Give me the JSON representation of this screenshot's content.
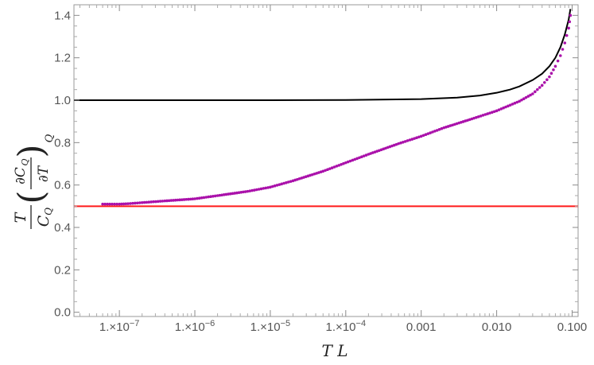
{
  "chart_data": {
    "type": "scatter",
    "title": "",
    "xlabel": "T L",
    "ylabel": {
      "prefix": "T",
      "prefix_den": "C",
      "prefix_den_sub": "Q",
      "partial_num": "∂C",
      "partial_num_sub": "Q",
      "partial_den": "∂T",
      "outer_sub": "Q"
    },
    "x_scale": "log",
    "xlim": [
      2.5e-08,
      0.12
    ],
    "ylim": [
      -0.02,
      1.45
    ],
    "x_ticks": [
      {
        "value": 1e-07,
        "label": "1.×10",
        "exp": "−7"
      },
      {
        "value": 1e-06,
        "label": "1.×10",
        "exp": "−6"
      },
      {
        "value": 1e-05,
        "label": "1.×10",
        "exp": "−5"
      },
      {
        "value": 0.0001,
        "label": "1.×10",
        "exp": "−4"
      },
      {
        "value": 0.001,
        "label": "0.001",
        "exp": ""
      },
      {
        "value": 0.01,
        "label": "0.010",
        "exp": ""
      },
      {
        "value": 0.1,
        "label": "0.100",
        "exp": ""
      }
    ],
    "y_ticks": [
      {
        "value": 0.0,
        "label": "0.0"
      },
      {
        "value": 0.2,
        "label": "0.2"
      },
      {
        "value": 0.4,
        "label": "0.4"
      },
      {
        "value": 0.6,
        "label": "0.6"
      },
      {
        "value": 0.8,
        "label": "0.8"
      },
      {
        "value": 1.0,
        "label": "1.0"
      },
      {
        "value": 1.2,
        "label": "1.2"
      },
      {
        "value": 1.4,
        "label": "1.4"
      }
    ],
    "grid": false,
    "legend": "none",
    "series": [
      {
        "kind": "line",
        "color": "#000000",
        "x": [
          2.5e-08,
          1e-07,
          1e-06,
          1e-05,
          0.0001,
          0.001,
          0.003,
          0.006,
          0.01,
          0.015,
          0.02,
          0.03,
          0.04,
          0.05,
          0.06,
          0.07,
          0.08,
          0.09,
          0.095
        ],
        "y": [
          1.0,
          1.0,
          1.0,
          1.0,
          1.001,
          1.005,
          1.012,
          1.022,
          1.035,
          1.05,
          1.065,
          1.095,
          1.125,
          1.16,
          1.2,
          1.25,
          1.31,
          1.38,
          1.43
        ]
      },
      {
        "kind": "line",
        "color": "#ff1a1a",
        "x": [
          2.5e-08,
          0.12
        ],
        "y": [
          0.5,
          0.5
        ]
      },
      {
        "kind": "points",
        "color": "#aa11aa",
        "x": [
          6e-08,
          8e-08,
          1e-07,
          1.3e-07,
          2e-07,
          4e-07,
          1e-06,
          2e-06,
          5e-06,
          1e-05,
          2e-05,
          5e-05,
          0.0001,
          0.0002,
          0.0005,
          0.001,
          0.002,
          0.005,
          0.01,
          0.02,
          0.03,
          0.04,
          0.05,
          0.06,
          0.07,
          0.08,
          0.09,
          0.095
        ],
        "y": [
          0.51,
          0.51,
          0.51,
          0.512,
          0.517,
          0.525,
          0.535,
          0.55,
          0.57,
          0.59,
          0.62,
          0.665,
          0.705,
          0.745,
          0.795,
          0.83,
          0.87,
          0.915,
          0.95,
          0.995,
          1.03,
          1.07,
          1.11,
          1.16,
          1.21,
          1.27,
          1.34,
          1.4
        ]
      }
    ]
  }
}
